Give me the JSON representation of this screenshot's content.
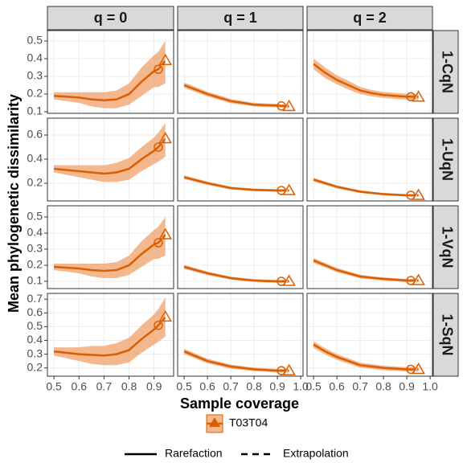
{
  "chart_data": {
    "type": "line",
    "xlabel": "Sample coverage",
    "ylabel": "Mean phylogenetic dissimilarity",
    "series_name": "T03T04",
    "color": "#d95f02",
    "band_color": "#f0a06a",
    "grid": true,
    "line_types": [
      "Rarefaction",
      "Extrapolation"
    ],
    "columns": [
      {
        "label": "q = 0",
        "xlim": [
          0.474,
          0.978
        ],
        "xticks": [
          0.5,
          0.6,
          0.7,
          0.8,
          0.9
        ],
        "x": [
          0.5,
          0.55,
          0.6,
          0.65,
          0.7,
          0.75,
          0.8,
          0.85,
          0.9,
          0.917
        ],
        "x_extrapolated": 0.945
      },
      {
        "label": "q = 1",
        "xlim": [
          0.472,
          1.01
        ],
        "xticks": [
          0.5,
          0.6,
          0.7,
          0.8,
          0.9,
          {
            "value": 1,
            "label": "1.0"
          }
        ],
        "x": [
          0.5,
          0.55,
          0.6,
          0.65,
          0.7,
          0.75,
          0.8,
          0.85,
          0.9,
          0.917
        ],
        "x_extrapolated": 0.95
      },
      {
        "label": "q = 2",
        "xlim": [
          0.472,
          1.01
        ],
        "xticks": [
          0.5,
          0.6,
          0.7,
          0.8,
          0.9,
          {
            "value": 1,
            "label": "1.0"
          }
        ],
        "x": [
          0.5,
          0.55,
          0.6,
          0.65,
          0.7,
          0.75,
          0.8,
          0.85,
          0.9,
          0.917
        ],
        "x_extrapolated": 0.95
      }
    ],
    "rows": [
      {
        "label": "1-CqN",
        "ylim": [
          0.091,
          0.559
        ],
        "yticks": [
          0.1,
          0.2,
          0.3,
          0.4,
          0.5
        ]
      },
      {
        "label": "1-UqN",
        "ylim": [
          0.053,
          0.74
        ],
        "yticks": [
          0.2,
          0.4,
          0.6
        ]
      },
      {
        "label": "1-VqN",
        "ylim": [
          0.055,
          0.57
        ],
        "yticks": [
          0.1,
          0.2,
          0.3,
          0.4,
          0.5
        ]
      },
      {
        "label": "1-SqN",
        "ylim": [
          0.14,
          0.742
        ],
        "yticks": [
          0.2,
          0.3,
          0.4,
          0.5,
          0.6,
          0.7
        ]
      }
    ],
    "panels": [
      {
        "row": 0,
        "col": 0,
        "values": [
          0.19,
          0.185,
          0.18,
          0.17,
          0.165,
          0.17,
          0.2,
          0.27,
          0.33,
          0.34
        ],
        "lower": [
          0.17,
          0.16,
          0.15,
          0.13,
          0.12,
          0.12,
          0.14,
          0.19,
          0.24,
          0.24
        ],
        "upper": [
          0.21,
          0.21,
          0.21,
          0.21,
          0.21,
          0.22,
          0.26,
          0.35,
          0.42,
          0.44
        ],
        "extrapolated": {
          "value": 0.39,
          "lower": 0.26,
          "upper": 0.5
        }
      },
      {
        "row": 0,
        "col": 1,
        "values": [
          0.25,
          0.225,
          0.2,
          0.18,
          0.16,
          0.15,
          0.14,
          0.137,
          0.135,
          0.133
        ],
        "lower": [
          0.235,
          0.21,
          0.187,
          0.167,
          0.148,
          0.139,
          0.13,
          0.127,
          0.125,
          0.123
        ],
        "upper": [
          0.265,
          0.24,
          0.213,
          0.193,
          0.172,
          0.161,
          0.15,
          0.147,
          0.145,
          0.143
        ],
        "extrapolated": {
          "value": 0.13,
          "lower": 0.12,
          "upper": 0.14
        }
      },
      {
        "row": 0,
        "col": 2,
        "values": [
          0.37,
          0.32,
          0.28,
          0.25,
          0.22,
          0.205,
          0.195,
          0.19,
          0.185,
          0.185
        ],
        "lower": [
          0.34,
          0.29,
          0.255,
          0.225,
          0.2,
          0.187,
          0.178,
          0.173,
          0.168,
          0.168
        ],
        "upper": [
          0.4,
          0.35,
          0.305,
          0.275,
          0.24,
          0.223,
          0.212,
          0.207,
          0.202,
          0.202
        ],
        "extrapolated": {
          "value": 0.183,
          "lower": 0.166,
          "upper": 0.2
        }
      },
      {
        "row": 1,
        "col": 0,
        "values": [
          0.32,
          0.31,
          0.3,
          0.29,
          0.28,
          0.29,
          0.32,
          0.4,
          0.47,
          0.5
        ],
        "lower": [
          0.29,
          0.27,
          0.25,
          0.23,
          0.21,
          0.21,
          0.23,
          0.3,
          0.36,
          0.38
        ],
        "upper": [
          0.35,
          0.35,
          0.35,
          0.35,
          0.35,
          0.37,
          0.41,
          0.5,
          0.58,
          0.62
        ],
        "extrapolated": {
          "value": 0.57,
          "lower": 0.42,
          "upper": 0.7
        }
      },
      {
        "row": 1,
        "col": 1,
        "values": [
          0.25,
          0.225,
          0.2,
          0.18,
          0.16,
          0.152,
          0.145,
          0.142,
          0.14,
          0.14
        ],
        "lower": [
          0.235,
          0.21,
          0.186,
          0.167,
          0.148,
          0.141,
          0.134,
          0.131,
          0.129,
          0.129
        ],
        "upper": [
          0.265,
          0.24,
          0.214,
          0.193,
          0.172,
          0.163,
          0.156,
          0.153,
          0.151,
          0.151
        ],
        "extrapolated": {
          "value": 0.14,
          "lower": 0.128,
          "upper": 0.152
        }
      },
      {
        "row": 1,
        "col": 2,
        "values": [
          0.23,
          0.2,
          0.17,
          0.15,
          0.13,
          0.12,
          0.11,
          0.105,
          0.1,
          0.1
        ],
        "lower": [
          0.215,
          0.186,
          0.157,
          0.138,
          0.119,
          0.11,
          0.1,
          0.095,
          0.09,
          0.09
        ],
        "upper": [
          0.245,
          0.214,
          0.183,
          0.162,
          0.141,
          0.13,
          0.12,
          0.115,
          0.11,
          0.11
        ],
        "extrapolated": {
          "value": 0.1,
          "lower": 0.089,
          "upper": 0.111
        }
      },
      {
        "row": 2,
        "col": 0,
        "values": [
          0.19,
          0.185,
          0.18,
          0.17,
          0.165,
          0.17,
          0.2,
          0.27,
          0.33,
          0.34
        ],
        "lower": [
          0.17,
          0.16,
          0.15,
          0.13,
          0.12,
          0.12,
          0.14,
          0.19,
          0.24,
          0.24
        ],
        "upper": [
          0.21,
          0.21,
          0.21,
          0.21,
          0.21,
          0.22,
          0.26,
          0.35,
          0.42,
          0.44
        ],
        "extrapolated": {
          "value": 0.39,
          "lower": 0.26,
          "upper": 0.5
        }
      },
      {
        "row": 2,
        "col": 1,
        "values": [
          0.19,
          0.17,
          0.15,
          0.135,
          0.12,
          0.112,
          0.105,
          0.102,
          0.1,
          0.1
        ],
        "lower": [
          0.177,
          0.158,
          0.139,
          0.125,
          0.111,
          0.103,
          0.096,
          0.093,
          0.091,
          0.091
        ],
        "upper": [
          0.203,
          0.182,
          0.161,
          0.145,
          0.129,
          0.121,
          0.114,
          0.111,
          0.109,
          0.109
        ],
        "extrapolated": {
          "value": 0.1,
          "lower": 0.09,
          "upper": 0.11
        }
      },
      {
        "row": 2,
        "col": 2,
        "values": [
          0.23,
          0.2,
          0.17,
          0.15,
          0.13,
          0.122,
          0.115,
          0.11,
          0.105,
          0.105
        ],
        "lower": [
          0.215,
          0.186,
          0.157,
          0.138,
          0.119,
          0.112,
          0.105,
          0.1,
          0.095,
          0.095
        ],
        "upper": [
          0.245,
          0.214,
          0.183,
          0.162,
          0.141,
          0.132,
          0.125,
          0.12,
          0.115,
          0.115
        ],
        "extrapolated": {
          "value": 0.105,
          "lower": 0.094,
          "upper": 0.116
        }
      },
      {
        "row": 3,
        "col": 0,
        "values": [
          0.32,
          0.31,
          0.3,
          0.295,
          0.29,
          0.3,
          0.33,
          0.41,
          0.48,
          0.51
        ],
        "lower": [
          0.29,
          0.27,
          0.25,
          0.23,
          0.22,
          0.22,
          0.24,
          0.31,
          0.37,
          0.39
        ],
        "upper": [
          0.35,
          0.35,
          0.35,
          0.36,
          0.36,
          0.38,
          0.42,
          0.51,
          0.59,
          0.63
        ],
        "extrapolated": {
          "value": 0.57,
          "lower": 0.43,
          "upper": 0.71
        }
      },
      {
        "row": 3,
        "col": 1,
        "values": [
          0.32,
          0.285,
          0.25,
          0.23,
          0.21,
          0.2,
          0.19,
          0.185,
          0.18,
          0.18
        ],
        "lower": [
          0.3,
          0.267,
          0.233,
          0.214,
          0.195,
          0.186,
          0.177,
          0.172,
          0.167,
          0.167
        ],
        "upper": [
          0.34,
          0.303,
          0.267,
          0.246,
          0.225,
          0.214,
          0.203,
          0.198,
          0.193,
          0.193
        ],
        "extrapolated": {
          "value": 0.18,
          "lower": 0.166,
          "upper": 0.194
        }
      },
      {
        "row": 3,
        "col": 2,
        "values": [
          0.37,
          0.32,
          0.28,
          0.25,
          0.22,
          0.21,
          0.2,
          0.195,
          0.19,
          0.19
        ],
        "lower": [
          0.345,
          0.297,
          0.259,
          0.23,
          0.202,
          0.193,
          0.184,
          0.179,
          0.174,
          0.174
        ],
        "upper": [
          0.395,
          0.343,
          0.301,
          0.27,
          0.238,
          0.227,
          0.216,
          0.211,
          0.206,
          0.206
        ],
        "extrapolated": {
          "value": 0.19,
          "lower": 0.173,
          "upper": 0.207
        }
      }
    ]
  }
}
